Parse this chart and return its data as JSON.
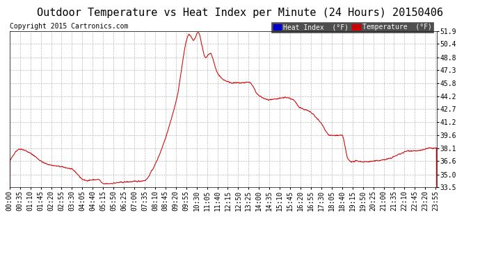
{
  "title": "Outdoor Temperature vs Heat Index per Minute (24 Hours) 20150406",
  "copyright": "Copyright 2015 Cartronics.com",
  "legend_labels": [
    "Heat Index  (°F)",
    "Temperature  (°F)"
  ],
  "legend_bg_colors": [
    "#0000cc",
    "#cc0000"
  ],
  "line_color": "#cc0000",
  "background_color": "#ffffff",
  "grid_color": "#aaaaaa",
  "ylim": [
    33.5,
    51.9
  ],
  "yticks": [
    33.5,
    35.0,
    36.6,
    38.1,
    39.6,
    41.2,
    42.7,
    44.2,
    45.8,
    47.3,
    48.8,
    50.4,
    51.9
  ],
  "title_fontsize": 11,
  "copyright_fontsize": 7,
  "tick_fontsize": 7,
  "control_minutes": [
    0,
    35,
    70,
    120,
    210,
    255,
    300,
    315,
    385,
    455,
    480,
    560,
    605,
    620,
    635,
    660,
    675,
    700,
    720,
    755,
    780,
    805,
    840,
    875,
    915,
    930,
    955,
    975,
    1015,
    1050,
    1080,
    1120,
    1140,
    1155,
    1170,
    1190,
    1270,
    1320,
    1345,
    1380,
    1400,
    1415,
    1435
  ],
  "control_temps": [
    36.5,
    38.0,
    37.5,
    36.3,
    35.6,
    34.3,
    34.4,
    33.9,
    34.1,
    34.3,
    35.5,
    43.5,
    51.5,
    50.8,
    51.8,
    48.8,
    49.3,
    47.0,
    46.2,
    45.8,
    45.8,
    45.9,
    44.3,
    43.8,
    44.0,
    44.1,
    43.8,
    43.0,
    42.3,
    41.0,
    39.6,
    39.6,
    36.8,
    36.5,
    36.6,
    36.5,
    36.8,
    37.5,
    37.8,
    37.8,
    38.0,
    38.1,
    38.1
  ]
}
